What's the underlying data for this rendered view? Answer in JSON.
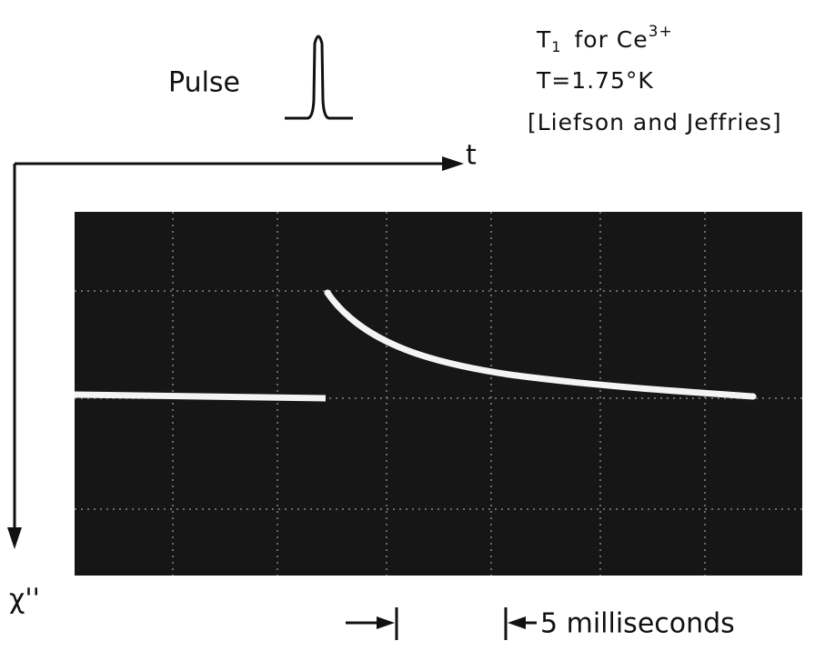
{
  "labels": {
    "pulse": "Pulse",
    "axis_t": "t",
    "axis_chi": "χ''",
    "scale": "5 milliseconds"
  },
  "annotation": {
    "line1": {
      "symbol": "T",
      "sub": "1",
      "rest": "for Ce",
      "sup": "3+"
    },
    "line2": "T=1.75°K",
    "line3": "[Liefson and Jeffries]"
  }
}
